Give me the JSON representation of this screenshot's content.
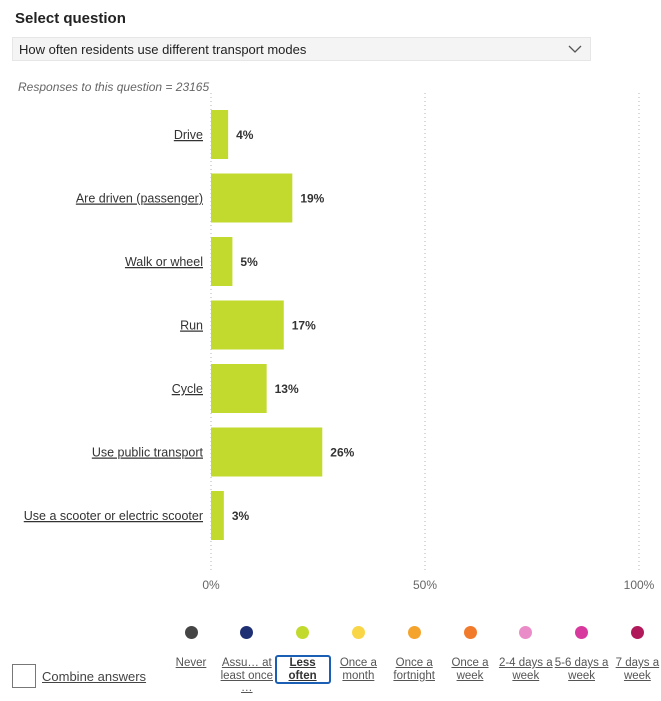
{
  "header": {
    "title": "Select question",
    "selected_question": "How often residents use different transport modes"
  },
  "responses_text": "Responses to this question = 23165",
  "chart_data": {
    "type": "bar",
    "orientation": "horizontal",
    "categories": [
      "Drive",
      "Are driven (passenger)",
      "Walk or wheel",
      "Run",
      "Cycle",
      "Use public transport",
      "Use a scooter or electric scooter"
    ],
    "values": [
      4,
      19,
      5,
      17,
      13,
      26,
      3
    ],
    "value_labels": [
      "4%",
      "19%",
      "5%",
      "17%",
      "13%",
      "26%",
      "3%"
    ],
    "xlim": [
      0,
      100
    ],
    "x_ticks": [
      0,
      50,
      100
    ],
    "x_tick_labels": [
      "0%",
      "50%",
      "100%"
    ],
    "bar_color": "#c2d92e",
    "grid": "dotted vertical"
  },
  "legend": {
    "items": [
      {
        "label": "Never",
        "color": "#454545",
        "active": false
      },
      {
        "label": "Assu… at least once …",
        "color": "#1f2f74",
        "active": false
      },
      {
        "label": "Less often",
        "color": "#c2d92e",
        "active": true
      },
      {
        "label": "Once a month",
        "color": "#f9d648",
        "active": false
      },
      {
        "label": "Once a fortnight",
        "color": "#f4a42c",
        "active": false
      },
      {
        "label": "Once a week",
        "color": "#f27a2b",
        "active": false
      },
      {
        "label": "2-4 days a week",
        "color": "#ea8cc7",
        "active": false
      },
      {
        "label": "5-6 days a week",
        "color": "#d7399c",
        "active": false
      },
      {
        "label": "7 days a week",
        "color": "#b0195a",
        "active": false
      }
    ]
  },
  "combine_label": "Combine answers"
}
